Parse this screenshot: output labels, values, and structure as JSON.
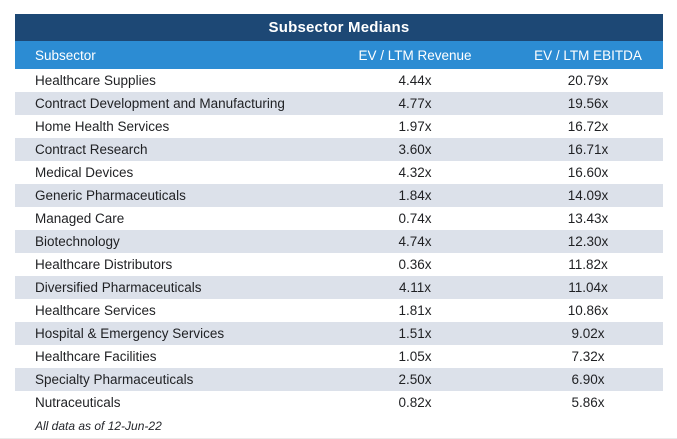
{
  "colors": {
    "title_bar_bg": "#1D4875",
    "header_row_bg": "#2C8CD3",
    "alt_row_bg": "#DCE1EA",
    "header_text": "#FFFFFF",
    "body_text": "#1F2023"
  },
  "chart_data": {
    "type": "table",
    "title": "Subsector Medians",
    "columns": [
      "Subsector",
      "EV / LTM Revenue",
      "EV / LTM EBITDA"
    ],
    "categories": [
      "Healthcare Supplies",
      "Contract Development and Manufacturing",
      "Home Health Services",
      "Contract Research",
      "Medical Devices",
      "Generic Pharmaceuticals",
      "Managed Care",
      "Biotechnology",
      "Healthcare Distributors",
      "Diversified Pharmaceuticals",
      "Healthcare Services",
      "Hospital & Emergency Services",
      "Healthcare Facilities",
      "Specialty Pharmaceuticals",
      "Nutraceuticals"
    ],
    "series": [
      {
        "name": "EV / LTM Revenue",
        "values": [
          4.44,
          4.77,
          1.97,
          3.6,
          4.32,
          1.84,
          0.74,
          4.74,
          0.36,
          4.11,
          1.81,
          1.51,
          1.05,
          2.5,
          0.82
        ]
      },
      {
        "name": "EV / LTM EBITDA",
        "values": [
          20.79,
          19.56,
          16.72,
          16.71,
          16.6,
          14.09,
          13.43,
          12.3,
          11.82,
          11.04,
          10.86,
          9.02,
          7.32,
          6.9,
          5.86
        ]
      }
    ],
    "cells": [
      [
        "Healthcare Supplies",
        "4.44x",
        "20.79x"
      ],
      [
        "Contract Development and Manufacturing",
        "4.77x",
        "19.56x"
      ],
      [
        "Home Health Services",
        "1.97x",
        "16.72x"
      ],
      [
        "Contract Research",
        "3.60x",
        "16.71x"
      ],
      [
        "Medical Devices",
        "4.32x",
        "16.60x"
      ],
      [
        "Generic Pharmaceuticals",
        "1.84x",
        "14.09x"
      ],
      [
        "Managed Care",
        "0.74x",
        "13.43x"
      ],
      [
        "Biotechnology",
        "4.74x",
        "12.30x"
      ],
      [
        "Healthcare Distributors",
        "0.36x",
        "11.82x"
      ],
      [
        "Diversified Pharmaceuticals",
        "4.11x",
        "11.04x"
      ],
      [
        "Healthcare Services",
        "1.81x",
        "10.86x"
      ],
      [
        "Hospital & Emergency Services",
        "1.51x",
        "9.02x"
      ],
      [
        "Healthcare Facilities",
        "1.05x",
        "7.32x"
      ],
      [
        "Specialty Pharmaceuticals",
        "2.50x",
        "6.90x"
      ],
      [
        "Nutraceuticals",
        "0.82x",
        "5.86x"
      ]
    ],
    "footnote": "All data as of 12-Jun-22"
  }
}
